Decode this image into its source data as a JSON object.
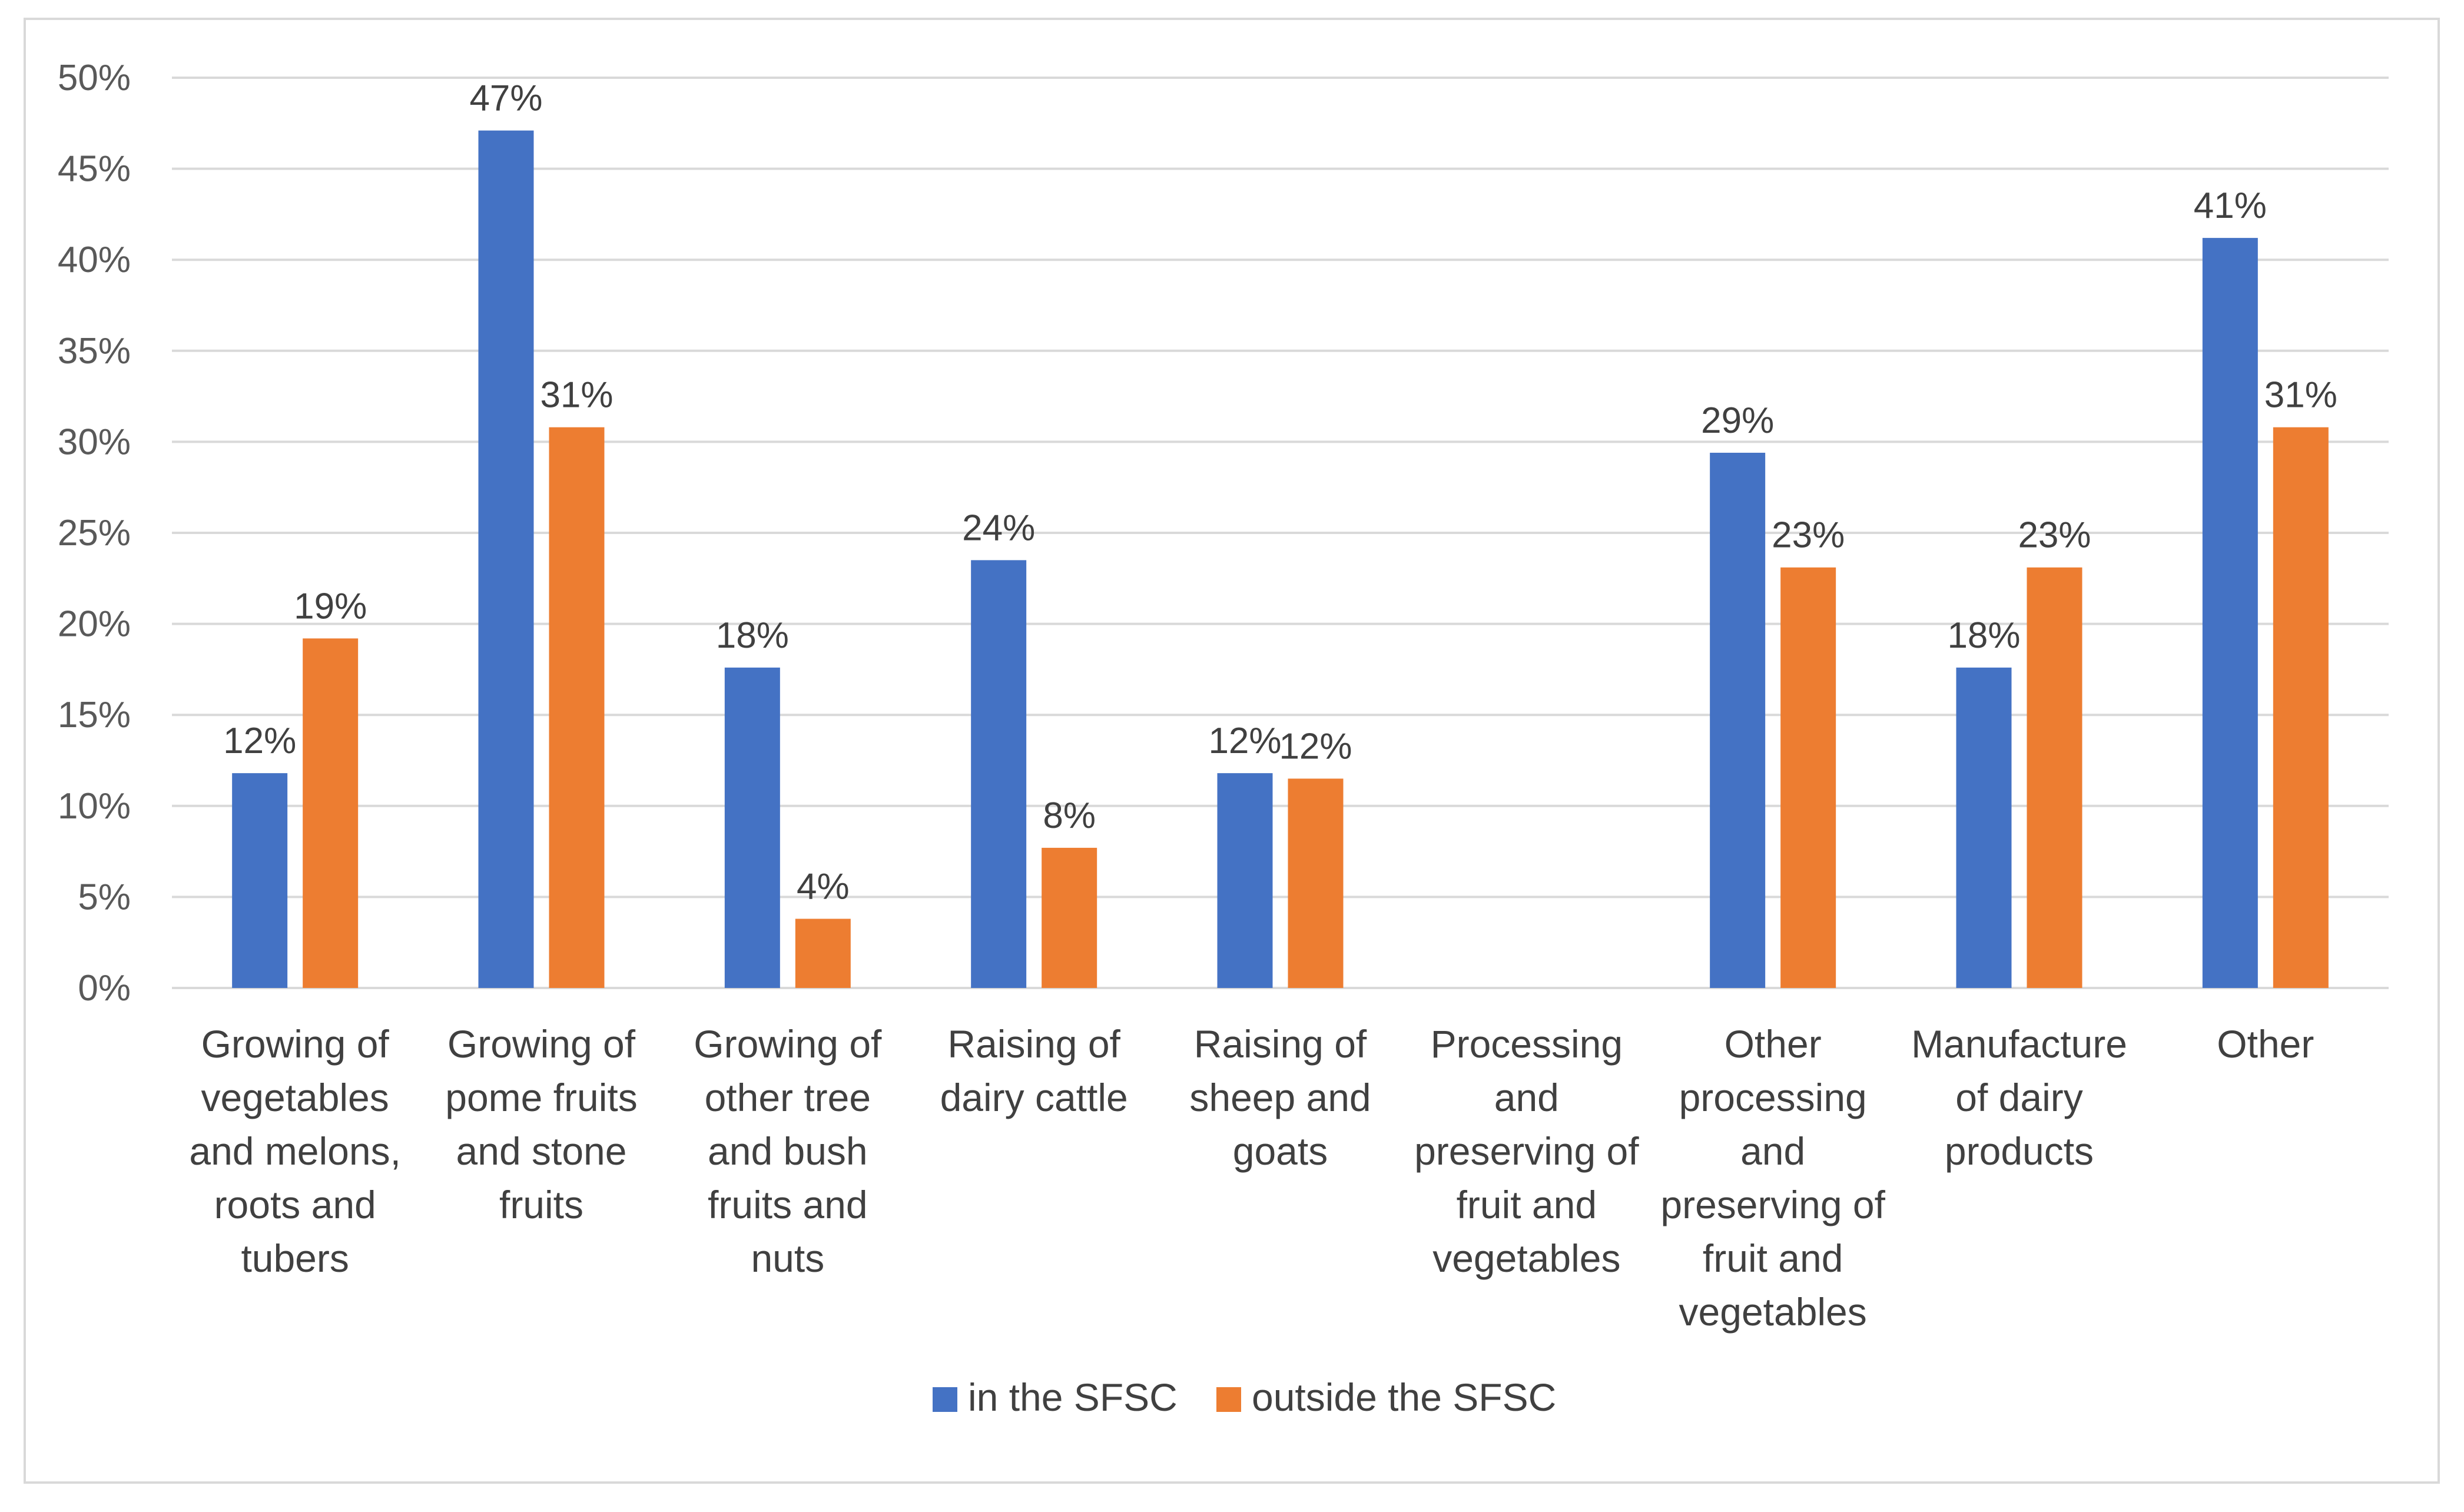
{
  "chart_data": {
    "type": "bar",
    "title": "",
    "xlabel": "",
    "ylabel": "",
    "ylim": [
      0,
      0.5
    ],
    "y_ticks": [
      {
        "value": 0.0,
        "label": "0%"
      },
      {
        "value": 0.05,
        "label": "5%"
      },
      {
        "value": 0.1,
        "label": "10%"
      },
      {
        "value": 0.15,
        "label": "15%"
      },
      {
        "value": 0.2,
        "label": "20%"
      },
      {
        "value": 0.25,
        "label": "25%"
      },
      {
        "value": 0.3,
        "label": "30%"
      },
      {
        "value": 0.35,
        "label": "35%"
      },
      {
        "value": 0.4,
        "label": "40%"
      },
      {
        "value": 0.45,
        "label": "45%"
      },
      {
        "value": 0.5,
        "label": "50%"
      }
    ],
    "grid": true,
    "legend_position": "bottom",
    "categories": [
      [
        "Growing of",
        "vegetables",
        "and melons,",
        "roots and",
        "tubers"
      ],
      [
        "Growing of",
        "pome fruits",
        "and stone",
        "fruits"
      ],
      [
        "Growing of",
        "other tree",
        "and bush",
        "fruits and",
        "nuts"
      ],
      [
        "Raising of",
        "dairy cattle"
      ],
      [
        "Raising of",
        "sheep and",
        "goats"
      ],
      [
        "Processing",
        "and",
        "preserving of",
        "fruit and",
        "vegetables"
      ],
      [
        "Other",
        "processing",
        "and",
        "preserving of",
        "fruit and",
        "vegetables"
      ],
      [
        "Manufacture",
        "of dairy",
        "products"
      ],
      [
        "Other"
      ]
    ],
    "series": [
      {
        "name": "in the SFSC",
        "color": "#4472c4",
        "values": [
          0.118,
          0.471,
          0.176,
          0.235,
          0.118,
          null,
          0.294,
          0.176,
          0.412
        ],
        "labels": [
          "12%",
          "47%",
          "18%",
          "24%",
          "12%",
          "",
          "29%",
          "18%",
          "41%"
        ]
      },
      {
        "name": "outside the SFSC",
        "color": "#ed7d31",
        "values": [
          0.192,
          0.308,
          0.038,
          0.077,
          0.115,
          null,
          0.231,
          0.231,
          0.308
        ],
        "labels": [
          "19%",
          "31%",
          "4%",
          "8%",
          "12%",
          "",
          "23%",
          "23%",
          "31%"
        ]
      }
    ],
    "colors": {
      "grid": "#d9d9d9",
      "axis": "#d9d9d9",
      "border": "#d9d9d9"
    }
  }
}
